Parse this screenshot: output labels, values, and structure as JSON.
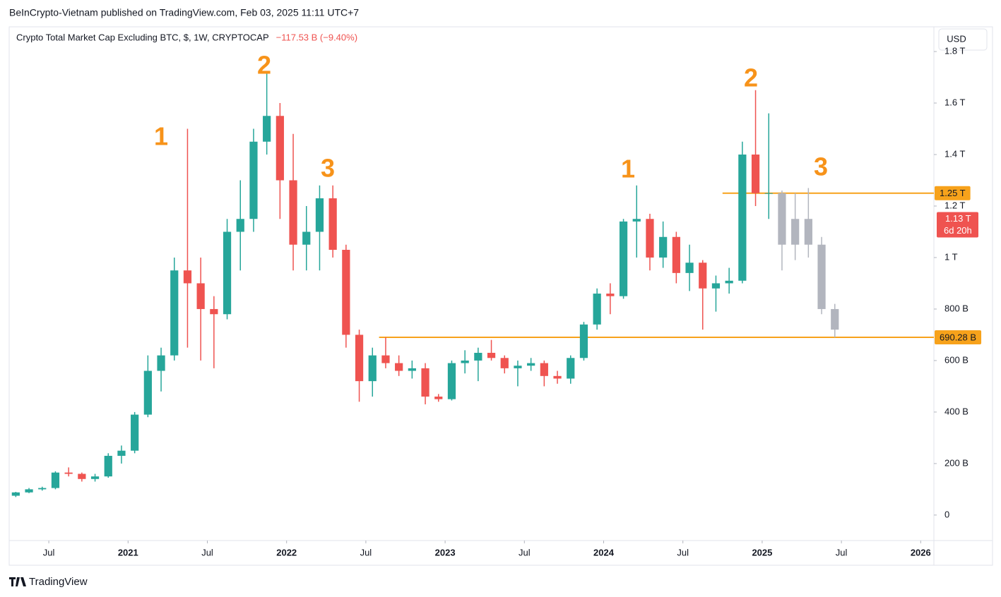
{
  "header": {
    "published": "BeInCrypto-Vietnam published on TradingView.com, Feb 03, 2025 11:11 UTC+7",
    "brand": "TradingView"
  },
  "chart_data": {
    "type": "candlestick",
    "title": "Crypto Total Market Cap Excluding BTC, $, 1W, CRYPTOCAP",
    "change": "−117.53 B (−9.40%)",
    "currency": "USD",
    "up_color": "#26a69a",
    "down_color": "#ef5350",
    "projection_color": "#b2b5be",
    "level_color": "#f7a21b",
    "x": [
      "2020-04",
      "2020-05",
      "2020-06",
      "2020-07",
      "2020-08",
      "2020-09",
      "2020-10",
      "2020-11",
      "2020-12",
      "2021-01",
      "2021-02",
      "2021-03",
      "2021-04",
      "2021-05",
      "2021-06",
      "2021-07",
      "2021-08",
      "2021-09",
      "2021-10",
      "2021-11",
      "2021-12",
      "2022-01",
      "2022-02",
      "2022-03",
      "2022-04",
      "2022-05",
      "2022-06",
      "2022-07",
      "2022-08",
      "2022-09",
      "2022-10",
      "2022-11",
      "2022-12",
      "2023-01",
      "2023-02",
      "2023-03",
      "2023-04",
      "2023-05",
      "2023-06",
      "2023-07",
      "2023-08",
      "2023-09",
      "2023-10",
      "2023-11",
      "2023-12",
      "2024-01",
      "2024-02",
      "2024-03",
      "2024-04",
      "2024-05",
      "2024-06",
      "2024-07",
      "2024-08",
      "2024-09",
      "2024-10",
      "2024-11",
      "2024-12",
      "2025-01"
    ],
    "open": [
      75,
      88,
      100,
      105,
      165,
      160,
      140,
      150,
      230,
      250,
      390,
      560,
      620,
      950,
      900,
      800,
      780,
      1100,
      1150,
      1450,
      1550,
      1300,
      1050,
      1100,
      1230,
      1030,
      700,
      520,
      620,
      590,
      560,
      570,
      460,
      450,
      590,
      600,
      630,
      610,
      570,
      580,
      590,
      540,
      530,
      610,
      740,
      860,
      850,
      1140,
      1150,
      1000,
      1080,
      940,
      980,
      880,
      900,
      910,
      1400,
      1250
    ],
    "high": [
      90,
      105,
      110,
      170,
      185,
      165,
      160,
      240,
      270,
      400,
      620,
      650,
      1000,
      1500,
      1000,
      850,
      1150,
      1300,
      1500,
      1720,
      1600,
      1480,
      1200,
      1280,
      1280,
      1050,
      720,
      650,
      690,
      620,
      600,
      590,
      470,
      600,
      640,
      650,
      680,
      620,
      600,
      610,
      600,
      560,
      620,
      750,
      880,
      900,
      1150,
      1280,
      1170,
      1140,
      1100,
      1050,
      990,
      930,
      960,
      1450,
      1650,
      1560
    ],
    "low": [
      70,
      85,
      95,
      100,
      150,
      130,
      130,
      145,
      200,
      240,
      380,
      480,
      600,
      650,
      600,
      570,
      760,
      950,
      1100,
      1400,
      1150,
      950,
      950,
      950,
      1000,
      650,
      440,
      460,
      570,
      540,
      530,
      430,
      440,
      445,
      550,
      520,
      600,
      550,
      500,
      560,
      500,
      510,
      510,
      600,
      720,
      780,
      840,
      1000,
      950,
      960,
      900,
      870,
      720,
      790,
      860,
      900,
      1200,
      1150
    ],
    "close": [
      88,
      100,
      105,
      165,
      160,
      140,
      150,
      230,
      250,
      390,
      560,
      620,
      950,
      900,
      800,
      780,
      1100,
      1150,
      1450,
      1550,
      1300,
      1050,
      1100,
      1230,
      1030,
      700,
      520,
      620,
      590,
      560,
      570,
      460,
      450,
      590,
      600,
      630,
      610,
      570,
      580,
      590,
      540,
      530,
      610,
      740,
      860,
      850,
      1140,
      1150,
      1000,
      1080,
      940,
      980,
      880,
      900,
      910,
      1400,
      1250,
      1250
    ],
    "projection": {
      "x": [
        "2025-02",
        "2025-03",
        "2025-04",
        "2025-05",
        "2025-06"
      ],
      "open": [
        1250,
        1050,
        1150,
        1050,
        800
      ],
      "high": [
        1260,
        1250,
        1270,
        1080,
        820
      ],
      "low": [
        950,
        990,
        1000,
        780,
        690
      ],
      "close": [
        1050,
        1150,
        1050,
        800,
        720
      ]
    },
    "levels": [
      {
        "value": 1250,
        "label": "1.25 T",
        "start": "2024-10"
      },
      {
        "value": 690.28,
        "label": "690.28 B",
        "start": "2022-08"
      }
    ],
    "last_price": {
      "value": 1130,
      "label": "1.13 T",
      "countdown": "6d 20h"
    },
    "annotations": [
      "1",
      "2",
      "3",
      "1",
      "2",
      "3"
    ],
    "xlim": [
      "2020-04",
      "2026-02"
    ],
    "xticks": [
      {
        "value": "2020-07",
        "label": "Jul"
      },
      {
        "value": "2021-01",
        "label": "2021"
      },
      {
        "value": "2021-07",
        "label": "Jul"
      },
      {
        "value": "2022-01",
        "label": "2022"
      },
      {
        "value": "2022-07",
        "label": "Jul"
      },
      {
        "value": "2023-01",
        "label": "2023"
      },
      {
        "value": "2023-07",
        "label": "Jul"
      },
      {
        "value": "2024-01",
        "label": "2024"
      },
      {
        "value": "2024-07",
        "label": "Jul"
      },
      {
        "value": "2025-01",
        "label": "2025"
      },
      {
        "value": "2025-07",
        "label": "Jul"
      },
      {
        "value": "2026-01",
        "label": "2026"
      }
    ],
    "ylim": [
      -99,
      1896
    ],
    "yticks": [
      0,
      {
        "value": 200,
        "label": "200 B"
      },
      {
        "value": 400,
        "label": "400 B"
      },
      {
        "value": 600,
        "label": "600 B"
      },
      {
        "value": 800,
        "label": "800 B"
      },
      {
        "value": 1000,
        "label": "1 T"
      },
      {
        "value": 1200,
        "label": "1.2 T"
      },
      {
        "value": 1400,
        "label": "1.4 T"
      },
      {
        "value": 1600,
        "label": "1.6 T"
      },
      {
        "value": 1800,
        "label": "1.8 T"
      }
    ]
  }
}
